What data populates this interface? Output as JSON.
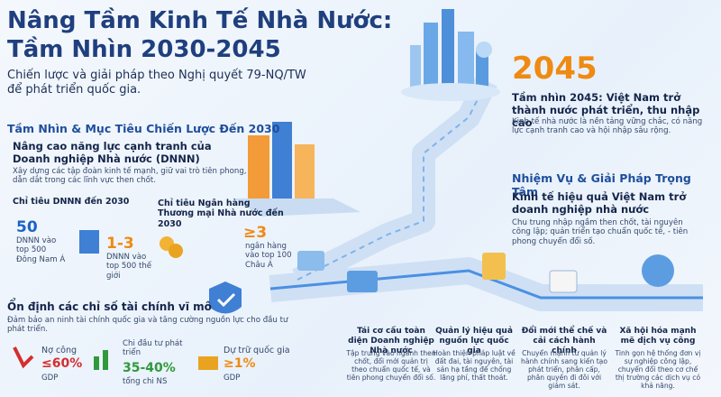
{
  "header": {
    "title_lines": [
      "Nâng Tầm Kinh Tế Nhà Nước:",
      "Tầm Nhìn 2030-2045"
    ],
    "subtitle": "Chiến lược và giải pháp theo Nghị quyết 79-NQ/TW để phát triển quốc gia."
  },
  "vision_2030": {
    "heading": "Tầm Nhìn & Mục Tiêu Chiến Lược Đến 2030",
    "subheading": "Nâng cao năng lực cạnh tranh của Doanh nghiệp Nhà nước (DNNN)",
    "description": "Xây dựng các tập đoàn kinh tế mạnh, giữ vai trò tiên phong, dẫn dắt trong các lĩnh vực then chốt.",
    "soe_target": {
      "label": "Chỉ tiêu DNNN đến 2030",
      "items": [
        {
          "value": "50",
          "text": "DNNN vào top 500 Đông Nam Á"
        },
        {
          "value": "1-3",
          "text": "DNNN vào top 500 thế giới"
        }
      ]
    },
    "bank_target": {
      "label": "Chỉ tiêu Ngân hàng Thương mại Nhà nước đến 2030",
      "value": "≥3",
      "text": "ngân hàng vào top 100 Châu Á"
    }
  },
  "macro": {
    "heading": "Ổn định các chỉ số tài chính vĩ mô",
    "description": "Đảm bảo an ninh tài chính quốc gia và tăng cường nguồn lực cho đầu tư phát triển.",
    "items": [
      {
        "label": "Nợ công",
        "value": "≤60%",
        "unit": "GDP"
      },
      {
        "label": "Chi đầu tư phát triển",
        "value": "35-40%",
        "unit": "tổng chi NS"
      },
      {
        "label": "Dự trữ quốc gia",
        "value": "≥1%",
        "unit": "GDP"
      }
    ]
  },
  "vision_2045": {
    "year": "2045",
    "heading": "Tầm nhìn 2045: Việt Nam trở thành nước phát triển, thu nhập cao",
    "description": "Kinh tế nhà nước là nền tảng vững chắc, có năng lực cạnh tranh cao và hội nhập sâu rộng."
  },
  "tasks": {
    "heading": "Nhiệm Vụ & Giải Pháp Trọng Tâm",
    "subheading": "Kinh tế hiệu quả Việt Nam trở doanh nghiệp nhà nước",
    "description": "Chu trung nhập ngầm then chốt, tài nguyên công lập; quản triển tạo chuẩn quốc tế, - tiên phong chuyển đổi số.",
    "items": [
      {
        "title": "Tái cơ cấu toàn diện Doanh nghiệp Nhà nước",
        "text": "Tập trung vào ngành then chốt, đổi mới quản trị theo chuẩn quốc tế, và tiên phong chuyển đổi số."
      },
      {
        "title": "Quản lý hiệu quả nguồn lực quốc gia",
        "text": "Hoàn thiện pháp luật về đất đai, tài nguyên, tài sản hạ tầng để chống lãng phí, thất thoát."
      },
      {
        "title": "Đổi mới thể chế và cải cách hành chính",
        "text": "Chuyển mạnh từ quản lý hành chính sang kiến tạo phát triển, phân cấp, phân quyền đi đôi với giám sát."
      },
      {
        "title": "Xã hội hóa mạnh mẽ dịch vụ công",
        "text": "Tinh gọn hệ thống đơn vị sự nghiệp công lập, chuyển đổi theo cơ chế thị trường các dịch vụ có khả năng."
      }
    ]
  }
}
